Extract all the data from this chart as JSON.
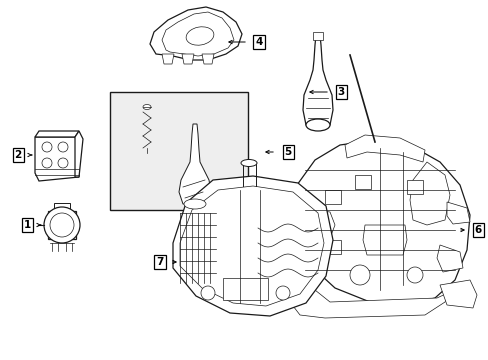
{
  "bg_color": "#ffffff",
  "line_color": "#1a1a1a",
  "lw_main": 0.9,
  "lw_thin": 0.5,
  "lw_med": 0.7,
  "fig_w": 4.89,
  "fig_h": 3.6,
  "dpi": 100
}
